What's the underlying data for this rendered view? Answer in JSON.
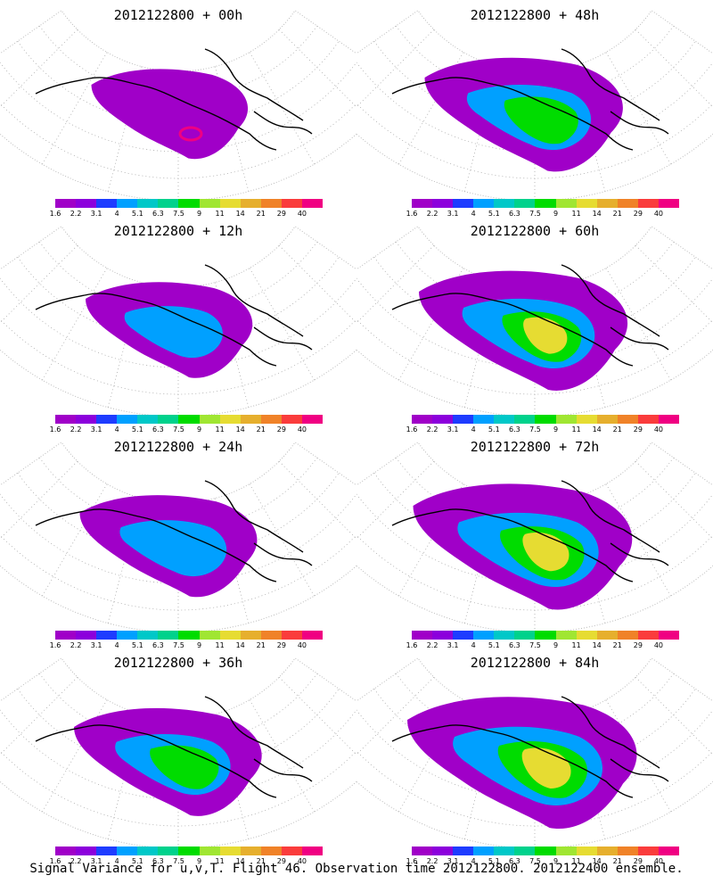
{
  "panels": [
    {
      "title": "2012122800 + 00h",
      "level": 0
    },
    {
      "title": "2012122800 + 48h",
      "level": 4
    },
    {
      "title": "2012122800 + 12h",
      "level": 1
    },
    {
      "title": "2012122800 + 60h",
      "level": 5
    },
    {
      "title": "2012122800 + 24h",
      "level": 2
    },
    {
      "title": "2012122800 + 72h",
      "level": 6
    },
    {
      "title": "2012122800 + 36h",
      "level": 3
    },
    {
      "title": "2012122800 + 84h",
      "level": 7
    }
  ],
  "colorbar": {
    "labels": [
      "1.6",
      "2.2",
      "3.1",
      "4",
      "5.1",
      "6.3",
      "7.5",
      "9",
      "11",
      "14",
      "21",
      "29",
      "40"
    ],
    "colors": [
      "#a000c8",
      "#8c00dc",
      "#1e3cff",
      "#00a0ff",
      "#00c8c8",
      "#00d28c",
      "#00dc00",
      "#a0e632",
      "#e6dc32",
      "#e6af2d",
      "#f08228",
      "#fa3c3c",
      "#f00082"
    ]
  },
  "footer": "Signal Variance for u,v,T. Flight 46. Observation time 2012122800. 2012122400 ensemble."
}
